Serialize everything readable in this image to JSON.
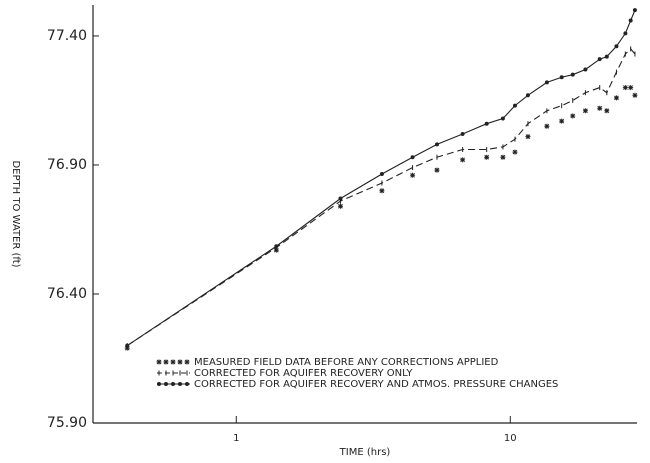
{
  "chart_data": {
    "type": "line",
    "xlabel": "TIME (hrs)",
    "ylabel": "DEPTH TO WATER (ft)",
    "x": [
      0.4,
      1.4,
      2.4,
      3.4,
      4.4,
      5.4,
      6.7,
      8.2,
      9.4,
      10.4,
      11.6,
      13.6,
      15.4,
      16.9,
      18.8,
      21.2,
      22.5,
      24.4,
      26.3,
      27.5,
      28.5
    ],
    "xlim": [
      0.3,
      29
    ],
    "xscale": "log",
    "xticks": [
      1,
      10
    ],
    "ylim": [
      75.9,
      77.52
    ],
    "yticks": [
      {
        "value": 75.9,
        "label": "75.90"
      },
      {
        "value": 76.4,
        "label": "76.40"
      },
      {
        "value": 76.9,
        "label": "76.90"
      },
      {
        "value": 77.4,
        "label": "77.40"
      }
    ],
    "legend_position": "lower center",
    "series": [
      {
        "name": "MEASURED FIELD DATA BEFORE ANY CORRECTIONS APPLIED",
        "color": "#222222",
        "style": "asterisk",
        "values": [
          76.19,
          76.57,
          76.74,
          76.8,
          76.86,
          76.88,
          76.92,
          76.93,
          76.93,
          76.95,
          77.01,
          77.05,
          77.07,
          77.09,
          77.11,
          77.12,
          77.11,
          77.16,
          77.2,
          77.2,
          77.17
        ]
      },
      {
        "name": "CORRECTED FOR AQUIFER RECOVERY ONLY",
        "color": "#222222",
        "style": "dashed",
        "values": [
          76.2,
          76.58,
          76.76,
          76.83,
          76.89,
          76.93,
          76.96,
          76.96,
          76.97,
          77.0,
          77.06,
          77.11,
          77.13,
          77.15,
          77.18,
          77.2,
          77.18,
          77.26,
          77.33,
          77.35,
          77.33
        ]
      },
      {
        "name": "CORRECTED FOR AQUIFER RECOVERY AND ATMOS. PRESSURE CHANGES",
        "color": "#222222",
        "style": "solid",
        "values": [
          76.2,
          76.585,
          76.77,
          76.865,
          76.93,
          76.98,
          77.02,
          77.06,
          77.08,
          77.13,
          77.17,
          77.22,
          77.24,
          77.25,
          77.27,
          77.31,
          77.32,
          77.36,
          77.41,
          77.46,
          77.5
        ]
      }
    ]
  }
}
